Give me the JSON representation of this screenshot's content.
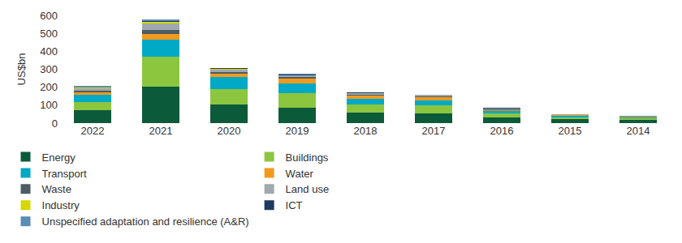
{
  "chart_data": {
    "type": "bar",
    "stacked": true,
    "grid": false,
    "legend": "bottom",
    "y_label": "US$bn",
    "categories": [
      "2022",
      "2021",
      "2020",
      "2019",
      "2018",
      "2017",
      "2016",
      "2015",
      "2014"
    ],
    "ylim": [
      0,
      600
    ],
    "yticks": [
      0,
      100,
      200,
      300,
      400,
      500,
      600
    ],
    "series": [
      {
        "name": "Energy",
        "color": "#0b5a3a",
        "values": [
          70,
          203,
          105,
          87,
          57,
          52,
          32,
          22,
          16
        ]
      },
      {
        "name": "Buildings",
        "color": "#8cc63f",
        "values": [
          48,
          167,
          83,
          82,
          48,
          47,
          20,
          10,
          9
        ]
      },
      {
        "name": "Transport",
        "color": "#00a9c6",
        "values": [
          42,
          93,
          67,
          53,
          30,
          28,
          14,
          8,
          6
        ]
      },
      {
        "name": "Water",
        "color": "#f39a1d",
        "values": [
          12,
          33,
          20,
          25,
          17,
          18,
          8,
          4,
          3
        ]
      },
      {
        "name": "Waste",
        "color": "#4d5b63",
        "values": [
          8,
          25,
          10,
          8,
          7,
          5,
          4,
          2,
          2
        ]
      },
      {
        "name": "Land use",
        "color": "#9fa9ae",
        "values": [
          14,
          35,
          15,
          10,
          8,
          6,
          4,
          2,
          1
        ]
      },
      {
        "name": "Industry",
        "color": "#d6d600",
        "values": [
          3,
          7,
          3,
          3,
          2,
          1,
          1,
          0.5,
          0.5
        ]
      },
      {
        "name": "ICT",
        "color": "#1e3a5f",
        "values": [
          3,
          5,
          2,
          2,
          1,
          1,
          1,
          0.5,
          0.5
        ]
      },
      {
        "name": "Unspecified adaptation and resilience (A&R)",
        "color": "#5a8db5",
        "values": [
          8,
          10,
          2,
          3,
          3,
          2,
          2,
          1,
          1
        ]
      }
    ]
  }
}
